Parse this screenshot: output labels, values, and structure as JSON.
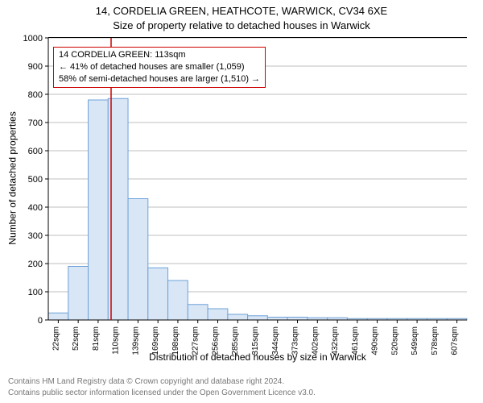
{
  "title_line1": "14, CORDELIA GREEN, HEATHCOTE, WARWICK, CV34 6XE",
  "title_line2": "Size of property relative to detached houses in Warwick",
  "y_axis_label": "Number of detached properties",
  "x_axis_label": "Distribution of detached houses by size in Warwick",
  "chart": {
    "type": "histogram",
    "ylim": [
      0,
      1000
    ],
    "ytick_step": 100,
    "yticks": [
      0,
      100,
      200,
      300,
      400,
      500,
      600,
      700,
      800,
      900,
      1000
    ],
    "x_tick_labels": [
      "22sqm",
      "52sqm",
      "81sqm",
      "110sqm",
      "139sqm",
      "169sqm",
      "198sqm",
      "227sqm",
      "256sqm",
      "285sqm",
      "315sqm",
      "344sqm",
      "373sqm",
      "402sqm",
      "432sqm",
      "461sqm",
      "490sqm",
      "520sqm",
      "549sqm",
      "578sqm",
      "607sqm"
    ],
    "bar_values": [
      25,
      190,
      780,
      785,
      430,
      185,
      140,
      55,
      40,
      20,
      15,
      10,
      10,
      8,
      8,
      5,
      5,
      5,
      5,
      5,
      5
    ],
    "bar_fill": "#d8e6f5",
    "bar_stroke": "#6ea2d8",
    "grid_color": "#000000",
    "grid_opacity": 0.25,
    "bar_gap_ratio": 0.0,
    "marker_line": {
      "x_index": 3.15,
      "color": "#cc0000",
      "width": 1.5
    }
  },
  "annotation": {
    "line1": "14 CORDELIA GREEN: 113sqm",
    "line2": "← 41% of detached houses are smaller (1,059)",
    "line3": "58% of semi-detached houses are larger (1,510) →",
    "border_color": "#cc0000"
  },
  "footer": {
    "line1": "Contains HM Land Registry data © Crown copyright and database right 2024.",
    "line2": "Contains public sector information licensed under the Open Government Licence v3.0."
  }
}
